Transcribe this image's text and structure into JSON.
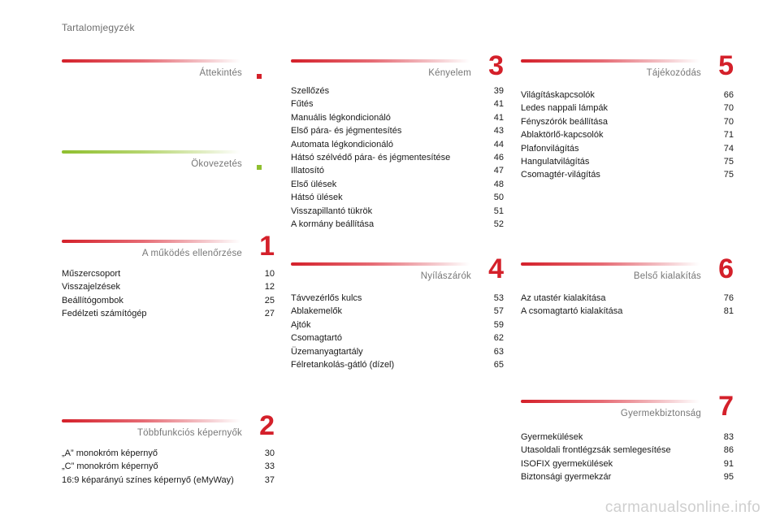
{
  "page_title": "Tartalomjegyzék",
  "sections": [
    {
      "id": "attekintes",
      "title": "Áttekintés",
      "number": "",
      "bar_color": "red",
      "entries": []
    },
    {
      "id": "okovezetes",
      "title": "Ökovezetés",
      "number": "",
      "bar_color": "green",
      "entries": []
    },
    {
      "id": "mukodes",
      "title": "A működés ellenőrzése",
      "number": "1",
      "bar_color": "red",
      "entries": [
        {
          "label": "Műszercsoport",
          "page": "10"
        },
        {
          "label": "Visszajelzések",
          "page": "12"
        },
        {
          "label": "Beállítógombok",
          "page": "25"
        },
        {
          "label": "Fedélzeti számítógép",
          "page": "27"
        }
      ]
    },
    {
      "id": "tobbfunkcios",
      "title": "Többfunkciós képernyők",
      "number": "2",
      "bar_color": "red",
      "entries": [
        {
          "label": "„A” monokróm képernyő",
          "page": "30"
        },
        {
          "label": "„C” monokróm képernyő",
          "page": "33"
        },
        {
          "label": "16:9 képarányú színes képernyő (eMyWay)",
          "page": "37"
        }
      ]
    },
    {
      "id": "kenyelem",
      "title": "Kényelem",
      "number": "3",
      "bar_color": "red",
      "entries": [
        {
          "label": "Szellőzés",
          "page": "39"
        },
        {
          "label": "Fűtés",
          "page": "41"
        },
        {
          "label": "Manuális légkondicionáló",
          "page": "41"
        },
        {
          "label": "Első pára- és jégmentesítés",
          "page": "43"
        },
        {
          "label": "Automata légkondicionáló",
          "page": "44"
        },
        {
          "label": "Hátsó szélvédő pára- és jégmentesítése",
          "page": "46"
        },
        {
          "label": "Illatosító",
          "page": "47"
        },
        {
          "label": "Első ülések",
          "page": "48"
        },
        {
          "label": "Hátsó ülések",
          "page": "50"
        },
        {
          "label": "Visszapillantó tükrök",
          "page": "51"
        },
        {
          "label": "A kormány beállítása",
          "page": "52"
        }
      ]
    },
    {
      "id": "nyilaszarok",
      "title": "Nyílászárók",
      "number": "4",
      "bar_color": "red",
      "entries": [
        {
          "label": "Távvezérlős kulcs",
          "page": "53"
        },
        {
          "label": "Ablakemelők",
          "page": "57"
        },
        {
          "label": "Ajtók",
          "page": "59"
        },
        {
          "label": "Csomagtartó",
          "page": "62"
        },
        {
          "label": "Üzemanyagtartály",
          "page": "63"
        },
        {
          "label": "Félretankolás-gátló (dízel)",
          "page": "65"
        }
      ]
    },
    {
      "id": "tajekozodas",
      "title": "Tájékozódás",
      "number": "5",
      "bar_color": "red",
      "entries": [
        {
          "label": "Világításkapcsolók",
          "page": "66"
        },
        {
          "label": "Ledes nappali lámpák",
          "page": "70"
        },
        {
          "label": "Fényszórók beállítása",
          "page": "70"
        },
        {
          "label": "Ablaktörlő-kapcsolók",
          "page": "71"
        },
        {
          "label": "Plafonvilágítás",
          "page": "74"
        },
        {
          "label": "Hangulatvilágítás",
          "page": "75"
        },
        {
          "label": "Csomagtér-világítás",
          "page": "75"
        }
      ]
    },
    {
      "id": "belso",
      "title": "Belső kialakítás",
      "number": "6",
      "bar_color": "red",
      "entries": [
        {
          "label": "Az utastér kialakítása",
          "page": "76"
        },
        {
          "label": "A csomagtartó kialakítása",
          "page": "81"
        }
      ]
    },
    {
      "id": "gyermekbiztonsag",
      "title": "Gyermekbiztonság",
      "number": "7",
      "bar_color": "red",
      "entries": [
        {
          "label": "Gyermekülések",
          "page": "83"
        },
        {
          "label": "Utasoldali frontlégzsák semlegesítése",
          "page": "86"
        },
        {
          "label": "ISOFIX gyermekülések",
          "page": "91"
        },
        {
          "label": "Biztonsági gyermekzár",
          "page": "95"
        }
      ]
    }
  ],
  "watermark": "carmanualsonline.info",
  "colors": {
    "accent_red": "#d4202a",
    "accent_green": "#8fbf2f",
    "text": "#1a1a1a",
    "muted": "#777777"
  }
}
